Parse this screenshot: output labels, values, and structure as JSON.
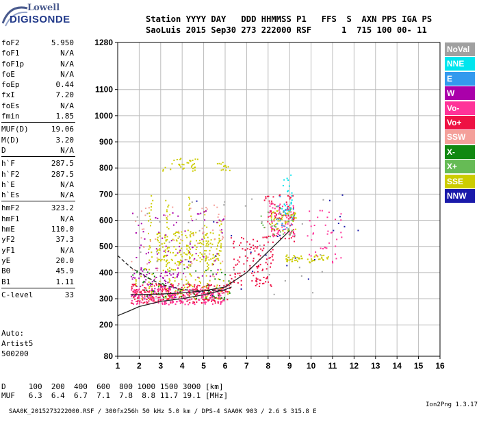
{
  "logo": {
    "line1": "Lowell",
    "line2": "DIGISONDE"
  },
  "header": {
    "labels": "Station YYYY DAY   DDD HHMMSS P1   FFS  S  AXN PPS IGA PS",
    "values": "SaoLuis 2015 Sep30 273 222000 RSF      1  715 100 00- 11"
  },
  "params": [
    {
      "name": "foF2",
      "value": "5.950"
    },
    {
      "name": "foF1",
      "value": "N/A"
    },
    {
      "name": "foF1p",
      "value": "N/A"
    },
    {
      "name": "foE",
      "value": "N/A"
    },
    {
      "name": "foEp",
      "value": "0.44"
    },
    {
      "name": "fxI",
      "value": "7.20"
    },
    {
      "name": "foEs",
      "value": "N/A"
    },
    {
      "name": "fmin",
      "value": "1.85"
    },
    {
      "name": "MUF(D)",
      "value": "19.06",
      "sep": true
    },
    {
      "name": "M(D)",
      "value": "3.20"
    },
    {
      "name": "D",
      "value": "N/A"
    },
    {
      "name": "h`F",
      "value": "287.5",
      "sep": true
    },
    {
      "name": "h`F2",
      "value": "287.5"
    },
    {
      "name": "h`E",
      "value": "N/A"
    },
    {
      "name": "h`Es",
      "value": "N/A"
    },
    {
      "name": "hmF2",
      "value": "323.2",
      "sep": true
    },
    {
      "name": "hmF1",
      "value": "N/A"
    },
    {
      "name": "hmE",
      "value": "110.0"
    },
    {
      "name": "yF2",
      "value": "37.3"
    },
    {
      "name": "yF1",
      "value": "N/A"
    },
    {
      "name": "yE",
      "value": "20.0"
    },
    {
      "name": "B0",
      "value": "45.9"
    },
    {
      "name": "B1",
      "value": "1.11"
    },
    {
      "name": "C-level",
      "value": "33",
      "sep": true
    }
  ],
  "auto": {
    "l1": "Auto:",
    "l2": "Artist5",
    "l3": "500200"
  },
  "muf_table": {
    "row1": "D     100  200  400  600  800 1000 1500 3000 [km]",
    "row2": "MUF   6.3  6.4  6.7  7.1  7.8  8.8 11.7 19.1 [MHz]"
  },
  "footer": {
    "left": "SAA0K_2015273222000.RSF / 300fx256h 50 kHz 5.0 km / DPS-4 SAA0K 903 / 2.6 S 315.8 E",
    "right": "Ion2Png 1.3.17"
  },
  "legend": [
    {
      "label": "NoVal",
      "color": "#a0a0a0"
    },
    {
      "label": "NNE",
      "color": "#00e5ee"
    },
    {
      "label": "E",
      "color": "#3399ee"
    },
    {
      "label": "W",
      "color": "#aa00aa"
    },
    {
      "label": "Vo-",
      "color": "#ff3399"
    },
    {
      "label": "Vo+",
      "color": "#ee1144"
    },
    {
      "label": "SSW",
      "color": "#f4a09a"
    },
    {
      "label": "X-",
      "color": "#118811"
    },
    {
      "label": "X+",
      "color": "#66bb55"
    },
    {
      "label": "SSE",
      "color": "#cccc00"
    },
    {
      "label": "NNW",
      "color": "#1a1aaa"
    }
  ],
  "chart_data": {
    "type": "scatter",
    "xlim": [
      1,
      16
    ],
    "xticks": [
      "1",
      "2",
      "3",
      "4",
      "5",
      "6",
      "7",
      "8",
      "9",
      "10",
      "11",
      "12",
      "13",
      "14",
      "15",
      "16"
    ],
    "ylim": [
      80,
      1280
    ],
    "yticks": [
      {
        "v": 80,
        "label": "80"
      },
      {
        "v": 200,
        "label": "200"
      },
      {
        "v": 300,
        "label": "300"
      },
      {
        "v": 400,
        "label": "400"
      },
      {
        "v": 500,
        "label": "500"
      },
      {
        "v": 600,
        "label": "600"
      },
      {
        "v": 700,
        "label": "700"
      },
      {
        "v": 800,
        "label": "800"
      },
      {
        "v": 900,
        "label": "900"
      },
      {
        "v": 1000,
        "label": "1000"
      },
      {
        "v": 1100,
        "label": "1100"
      },
      {
        "v": 1280,
        "label": "1280"
      }
    ],
    "grid": true,
    "clusters": [
      {
        "color": "#ee1144",
        "f": [
          1.6,
          6.2
        ],
        "h": [
          285,
          360
        ],
        "n": 260
      },
      {
        "color": "#ff3399",
        "f": [
          1.6,
          6.0
        ],
        "h": [
          280,
          340
        ],
        "n": 180
      },
      {
        "color": "#aa00aa",
        "f": [
          1.6,
          4.0
        ],
        "h": [
          300,
          420
        ],
        "n": 70
      },
      {
        "color": "#cccc00",
        "f": [
          2.8,
          5.8
        ],
        "h": [
          430,
          560
        ],
        "n": 170
      },
      {
        "color": "#cccc00",
        "f": [
          3.0,
          4.8
        ],
        "h": [
          790,
          840
        ],
        "n": 35
      },
      {
        "color": "#cccc00",
        "f": [
          5.6,
          6.4
        ],
        "h": [
          790,
          830
        ],
        "n": 14
      },
      {
        "color": "#ee1144",
        "f": [
          6.2,
          8.2
        ],
        "h": [
          350,
          540
        ],
        "n": 120
      },
      {
        "color": "#ff3399",
        "f": [
          8.0,
          9.2
        ],
        "h": [
          540,
          670
        ],
        "n": 80
      },
      {
        "color": "#ee1144",
        "f": [
          7.8,
          9.2
        ],
        "h": [
          520,
          700
        ],
        "n": 70
      },
      {
        "color": "#cccc00",
        "f": [
          8.0,
          9.4
        ],
        "h": [
          560,
          640
        ],
        "n": 45
      },
      {
        "color": "#aa00aa",
        "f": [
          1.6,
          6.0
        ],
        "h": [
          380,
          640
        ],
        "n": 70
      },
      {
        "color": "#f4a09a",
        "f": [
          1.6,
          6.0
        ],
        "h": [
          380,
          660
        ],
        "n": 60
      },
      {
        "color": "#cccc00",
        "f": [
          1.8,
          6.2
        ],
        "h": [
          300,
          420
        ],
        "n": 60
      },
      {
        "color": "#cccc00",
        "f": [
          8.8,
          9.6
        ],
        "h": [
          440,
          470
        ],
        "n": 30
      },
      {
        "color": "#cccc00",
        "f": [
          9.8,
          10.8
        ],
        "h": [
          440,
          470
        ],
        "n": 22
      },
      {
        "color": "#118811",
        "f": [
          1.6,
          6.2
        ],
        "h": [
          300,
          420
        ],
        "n": 50
      },
      {
        "color": "#00e5ee",
        "f": [
          8.6,
          9.1
        ],
        "h": [
          620,
          780
        ],
        "n": 25
      },
      {
        "color": "#3399ee",
        "f": [
          8.4,
          9.2
        ],
        "h": [
          560,
          700
        ],
        "n": 20
      },
      {
        "color": "#1a1aaa",
        "f": [
          3,
          12.5
        ],
        "h": [
          300,
          700
        ],
        "n": 25
      },
      {
        "color": "#66bb55",
        "f": [
          7.6,
          9.2
        ],
        "h": [
          540,
          660
        ],
        "n": 30
      },
      {
        "color": "#a0a0a0",
        "f": [
          1.6,
          10.8
        ],
        "h": [
          280,
          700
        ],
        "n": 40
      },
      {
        "color": "#ff3399",
        "f": [
          9.8,
          11.4
        ],
        "h": [
          440,
          640
        ],
        "n": 40
      }
    ],
    "stripes": [
      {
        "color": "#cccc00",
        "f": [
          2.4,
          2.6
        ],
        "h": [
          300,
          700
        ]
      },
      {
        "color": "#cccc00",
        "f": [
          3.2,
          3.4
        ],
        "h": [
          300,
          680
        ]
      },
      {
        "color": "#cccc00",
        "f": [
          4.2,
          4.4
        ],
        "h": [
          300,
          700
        ]
      },
      {
        "color": "#cccc00",
        "f": [
          5.0,
          5.2
        ],
        "h": [
          300,
          640
        ]
      },
      {
        "color": "#cccc00",
        "f": [
          5.6,
          5.8
        ],
        "h": [
          300,
          620
        ]
      }
    ],
    "curves": [
      {
        "color": "#222222",
        "dash": false,
        "points": [
          [
            1,
            235
          ],
          [
            1.5,
            252
          ],
          [
            2,
            270
          ],
          [
            3,
            290
          ],
          [
            4,
            300
          ],
          [
            5,
            315
          ],
          [
            6,
            335
          ],
          [
            6.3,
            345
          ]
        ]
      },
      {
        "color": "#222222",
        "dash": false,
        "points": [
          [
            1.6,
            315
          ],
          [
            3,
            318
          ],
          [
            4,
            322
          ],
          [
            5,
            330
          ],
          [
            6,
            345
          ],
          [
            7,
            400
          ],
          [
            8,
            480
          ],
          [
            8.5,
            520
          ],
          [
            9,
            560
          ]
        ]
      },
      {
        "color": "#222222",
        "dash": true,
        "points": [
          [
            1,
            465
          ],
          [
            1.6,
            420
          ],
          [
            2.3,
            385
          ],
          [
            3,
            355
          ],
          [
            4,
            335
          ],
          [
            5,
            330
          ],
          [
            6,
            332
          ]
        ]
      }
    ]
  }
}
